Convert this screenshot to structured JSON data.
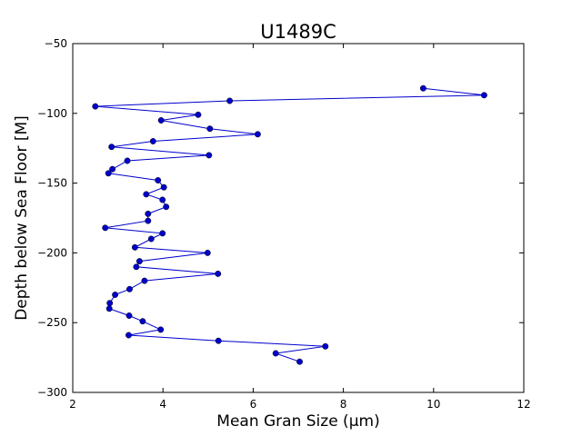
{
  "chart_data": {
    "type": "line",
    "title": "U1489C",
    "xlabel": "Mean Gran Size (µm)",
    "ylabel": "Depth below Sea Floor [M]",
    "xlim": [
      2,
      12
    ],
    "ylim": [
      -300,
      -50
    ],
    "xticks": [
      2,
      4,
      6,
      8,
      10,
      12
    ],
    "yticks": [
      -50,
      -100,
      -150,
      -200,
      -250,
      -300
    ],
    "xtick_labels": [
      "2",
      "4",
      "6",
      "8",
      "10",
      "12"
    ],
    "ytick_labels": [
      "−50",
      "−100",
      "−150",
      "−200",
      "−250",
      "−300"
    ],
    "grid": false,
    "legend": "none",
    "color": "#0000cc",
    "series": [
      {
        "x": [
          9.77,
          11.12,
          5.48,
          2.5,
          4.78,
          3.96,
          5.04,
          6.1,
          3.78,
          2.86,
          5.02,
          3.21,
          2.88,
          2.79,
          3.89,
          4.02,
          3.63,
          3.99,
          4.07,
          3.67,
          3.67,
          2.72,
          3.99,
          3.74,
          3.38,
          4.99,
          3.48,
          3.41,
          5.22,
          3.59,
          3.26,
          2.94,
          2.82,
          2.81,
          3.25,
          3.55,
          3.95,
          3.24,
          5.23,
          7.6,
          6.5,
          7.03
        ],
        "y": [
          -82,
          -87,
          -91,
          -95,
          -101,
          -105,
          -111,
          -115,
          -120,
          -124,
          -130,
          -134,
          -140,
          -143,
          -148,
          -153,
          -158,
          -162,
          -167,
          -172,
          -177,
          -182,
          -186,
          -190,
          -196,
          -200,
          -206,
          -210,
          -215,
          -220,
          -226,
          -230,
          -236,
          -240,
          -245,
          -249,
          -255,
          -259,
          -263,
          -267,
          -272,
          -278
        ]
      }
    ]
  }
}
